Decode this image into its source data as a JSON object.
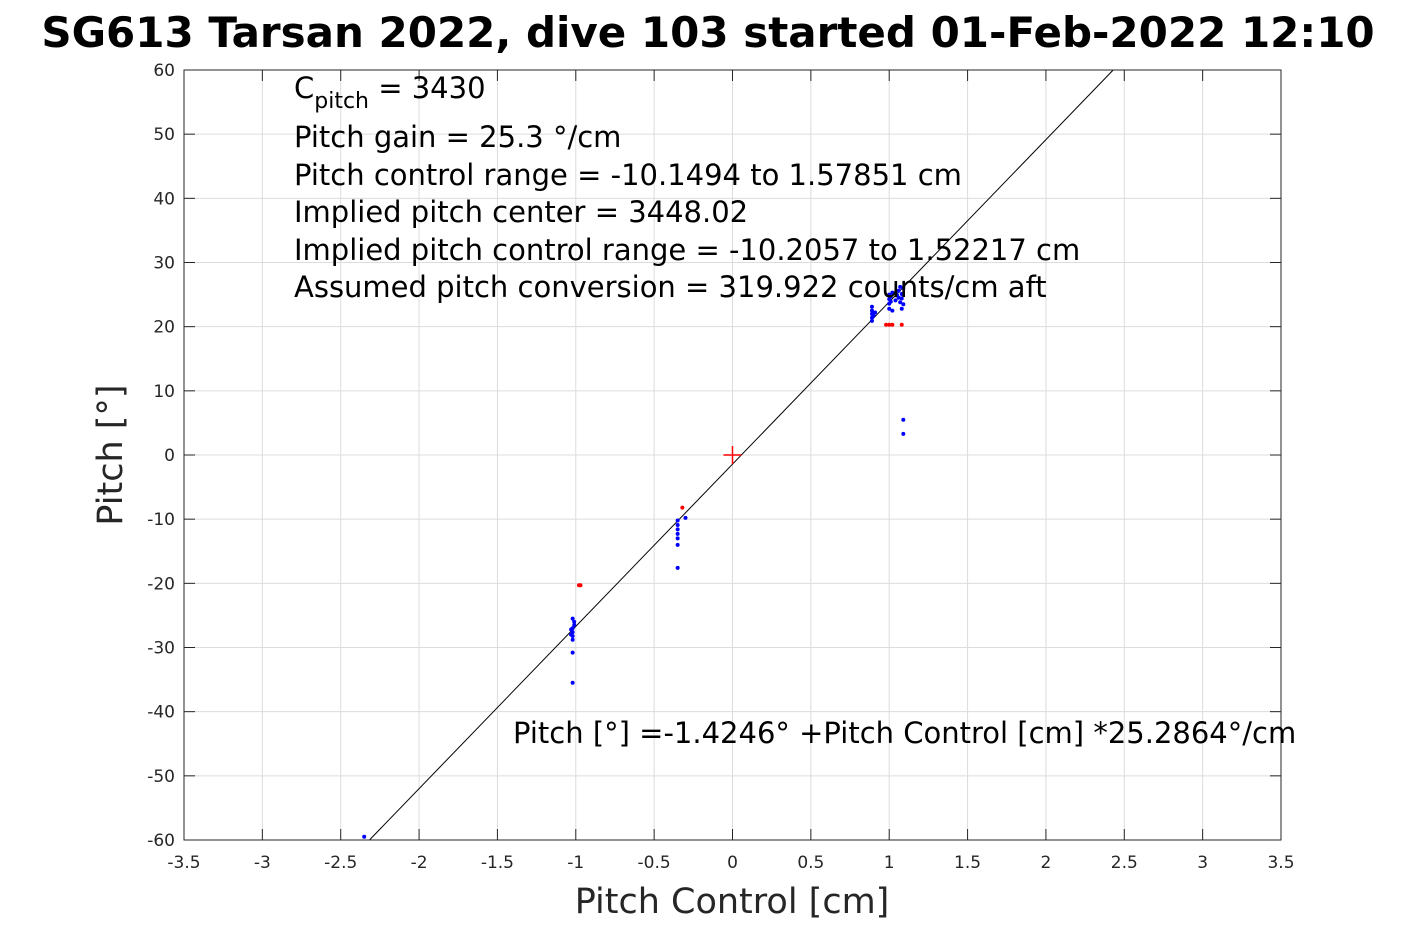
{
  "chart_data": {
    "type": "scatter",
    "title": "SG613 Tarsan 2022, dive 103 started 01-Feb-2022 12:10",
    "xlabel": "Pitch Control [cm]",
    "ylabel": "Pitch [°]",
    "xlim": [
      -3.5,
      3.5
    ],
    "ylim": [
      -60,
      60
    ],
    "xticks": [
      -3.5,
      -3,
      -2.5,
      -2,
      -1.5,
      -1,
      -0.5,
      0,
      0.5,
      1,
      1.5,
      2,
      2.5,
      3,
      3.5
    ],
    "yticks": [
      -60,
      -50,
      -40,
      -30,
      -20,
      -10,
      0,
      10,
      20,
      30,
      40,
      50,
      60
    ],
    "xtick_labels": [
      "-3.5",
      "-3",
      "-2.5",
      "-2",
      "-1.5",
      "-1",
      "-0.5",
      "0",
      "0.5",
      "1",
      "1.5",
      "2",
      "2.5",
      "3",
      "3.5"
    ],
    "ytick_labels": [
      "-60",
      "-50",
      "-40",
      "-30",
      "-20",
      "-10",
      "0",
      "10",
      "20",
      "30",
      "40",
      "50",
      "60"
    ],
    "grid": true,
    "fit_line": {
      "intercept": -1.4246,
      "slope": 25.2864,
      "color": "#000000"
    },
    "center_marker": {
      "x": 0,
      "y": 0,
      "color": "#ff0000",
      "symbol": "+"
    },
    "series": [
      {
        "color": "#0000ff",
        "points": [
          [
            -2.35,
            -59.5
          ],
          [
            -1.02,
            -35.5
          ],
          [
            -1.02,
            -30.8
          ],
          [
            -1.02,
            -28.8
          ],
          [
            -1.02,
            -28.2
          ],
          [
            -1.02,
            -27.6
          ],
          [
            -1.02,
            -27.0
          ],
          [
            -1.01,
            -26.5
          ],
          [
            -1.01,
            -26.0
          ],
          [
            -1.02,
            -25.5
          ],
          [
            -1.03,
            -28.0
          ],
          [
            -1.03,
            -27.2
          ],
          [
            -0.35,
            -17.6
          ],
          [
            -0.35,
            -14.0
          ],
          [
            -0.35,
            -13.0
          ],
          [
            -0.35,
            -12.3
          ],
          [
            -0.35,
            -11.6
          ],
          [
            -0.35,
            -10.9
          ],
          [
            -0.35,
            -10.2
          ],
          [
            -0.3,
            -9.8
          ],
          [
            0.89,
            20.9
          ],
          [
            0.89,
            21.4
          ],
          [
            0.89,
            22.0
          ],
          [
            0.89,
            22.5
          ],
          [
            0.89,
            23.1
          ],
          [
            0.9,
            21.7
          ],
          [
            0.91,
            22.2
          ],
          [
            1.0,
            22.8
          ],
          [
            1.0,
            23.6
          ],
          [
            1.0,
            24.3
          ],
          [
            1.0,
            25.0
          ],
          [
            1.01,
            23.9
          ],
          [
            1.01,
            24.7
          ],
          [
            1.02,
            22.5
          ],
          [
            1.02,
            25.3
          ],
          [
            1.04,
            24.1
          ],
          [
            1.05,
            24.9
          ],
          [
            1.06,
            25.6
          ],
          [
            1.06,
            24.5
          ],
          [
            1.07,
            23.8
          ],
          [
            1.07,
            26.2
          ],
          [
            1.08,
            25.1
          ],
          [
            1.08,
            24.4
          ],
          [
            1.09,
            26.0
          ],
          [
            1.09,
            23.5
          ],
          [
            1.08,
            22.8
          ],
          [
            1.09,
            5.5
          ],
          [
            1.09,
            3.3
          ]
        ]
      },
      {
        "color": "#ff0000",
        "points": [
          [
            -0.98,
            -20.3
          ],
          [
            -0.97,
            -20.3
          ],
          [
            -0.32,
            -8.2
          ],
          [
            0.98,
            20.3
          ],
          [
            1.0,
            20.3
          ],
          [
            1.02,
            20.3
          ],
          [
            1.08,
            20.3
          ]
        ]
      }
    ],
    "annotations": {
      "cpitch_prefix": "C",
      "cpitch_sub": "pitch",
      "cpitch_value": " = 3430",
      "lines": [
        "Pitch gain = 25.3 °/cm",
        "Pitch control range = -10.1494 to 1.57851 cm",
        "Implied pitch center = 3448.02",
        "Implied pitch control range = -10.2057 to 1.52217 cm",
        "Assumed pitch conversion = 319.922 counts/cm aft"
      ],
      "equation": "Pitch [°] =-1.4246° +Pitch Control [cm] *25.2864°/cm"
    }
  }
}
